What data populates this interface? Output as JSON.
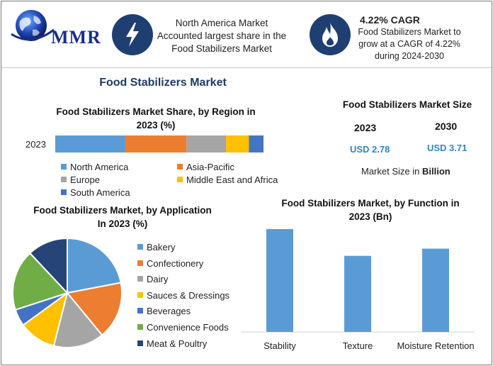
{
  "header": {
    "logo_text": "MMR",
    "block1": {
      "icon": "lightning-bolt-icon",
      "lines": [
        "North America Market",
        "Accounted largest share in the",
        "Food Stabilizers Market"
      ]
    },
    "block2": {
      "icon": "flame-icon",
      "headline": "4.22% CAGR",
      "lines": [
        "Food Stabilizers Market to",
        "grow at a CAGR of 4.22%",
        "during 2024-2030"
      ]
    }
  },
  "main_title": "Food Stabilizers Market",
  "market_size": {
    "title": "Food Stabilizers Market Size",
    "year1": "2023",
    "year2": "2030",
    "value1": "USD 2.78",
    "value2": "USD 3.71",
    "note_prefix": "Market Size in ",
    "note_bold": "Billion"
  },
  "colors": {
    "blue": "#5b9bd5",
    "orange": "#ed7d31",
    "gray": "#a5a5a5",
    "yellow": "#ffc000",
    "darkblue": "#4472c4",
    "green": "#70ad47",
    "navy": "#264478",
    "value_blue": "#2e86c1"
  },
  "chart_data": [
    {
      "type": "bar",
      "orientation": "horizontal-stacked",
      "title_line1": "Food Stabilizers Market Share, by Region in",
      "title_line2": "2023 (%)",
      "categories": [
        "2023"
      ],
      "series": [
        {
          "name": "North America",
          "values": [
            33.5
          ],
          "color": "#5b9bd5"
        },
        {
          "name": "Asia-Pacific",
          "values": [
            29.5
          ],
          "color": "#ed7d31"
        },
        {
          "name": "Europe",
          "values": [
            19
          ],
          "color": "#a5a5a5"
        },
        {
          "name": "Middle East and Africa",
          "values": [
            11
          ],
          "color": "#ffc000"
        },
        {
          "name": "South America",
          "values": [
            7
          ],
          "color": "#4472c4"
        }
      ],
      "xlim": [
        0,
        100
      ],
      "legend": "bottom"
    },
    {
      "type": "pie",
      "title_line1": "Food Stabilizers Market, by Application",
      "title_line2": "In 2023 (%)",
      "labels": [
        "Bakery",
        "Confectionery",
        "Dairy",
        "Sauces & Dressings",
        "Beverages",
        "Convenience Foods",
        "Meat & Poultry"
      ],
      "values": [
        22,
        17,
        15,
        11,
        5,
        18,
        12
      ],
      "colors": [
        "#5b9bd5",
        "#ed7d31",
        "#a5a5a5",
        "#ffc000",
        "#4472c4",
        "#70ad47",
        "#264478"
      ],
      "legend": "right"
    },
    {
      "type": "bar",
      "title_line1": "Food Stabilizers Market, by Function in",
      "title_line2": "2023 (Bn)",
      "categories": [
        "Stability",
        "Texture",
        "Moisture Retention"
      ],
      "values": [
        1.0,
        0.74,
        0.81
      ],
      "color": "#5b9bd5",
      "ylim": [
        0,
        1.0
      ]
    }
  ]
}
